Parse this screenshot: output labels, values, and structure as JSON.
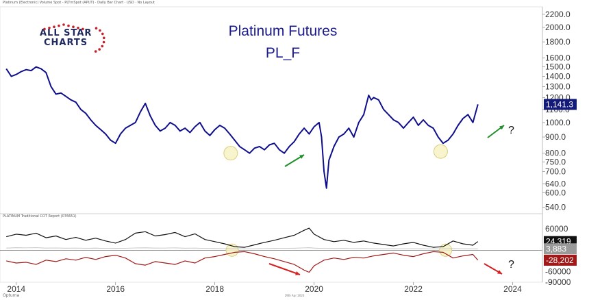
{
  "header": {
    "info": "Platinum (Electronic) Volume Spot - PLTmSpot (APUT) · Daily Bar Chart · USD · No Layout",
    "indicator": "PLATINUM Traditional COT Report (076651)",
    "date_stamp": "29th Apr 2023",
    "brand": "Optuma"
  },
  "title_line1": "Platinum Futures",
  "title_line2": "PL_F",
  "logo": {
    "line1": "ALL STAR",
    "line2": "CHARTS"
  },
  "annotations": {
    "question_mark": "?"
  },
  "colors": {
    "price": "#0e0e8c",
    "price_label_bg": "#131a78",
    "commercials": "#a01818",
    "speculators": "#111111",
    "other": "#bbbbbb",
    "arrow_up": "#1e8e2a",
    "arrow_down": "#d42020",
    "highlight_fill": "#f7f2c6",
    "highlight_stroke": "#d8cf7a",
    "axis_text": "#333333"
  },
  "chart_data": [
    {
      "type": "line",
      "name": "Platinum Futures price",
      "log_scale": true,
      "ylim": [
        520,
        2300
      ],
      "y_ticks": [
        "2200.0",
        "2000.0",
        "1800.0",
        "1600.0",
        "1500.0",
        "1400.0",
        "1300.0",
        "1200.0",
        "1100.0",
        "1000.0",
        "900.0",
        "800.0",
        "750.0",
        "700.0",
        "640.0",
        "600.0",
        "540.0"
      ],
      "xlim": [
        2013.7,
        2024.6
      ],
      "x_ticks": [
        "2014",
        "2016",
        "2018",
        "2020",
        "2022",
        "2024"
      ],
      "last_value_label": "1,141.3",
      "x": [
        2013.8,
        2013.9,
        2014.0,
        2014.1,
        2014.2,
        2014.3,
        2014.4,
        2014.5,
        2014.6,
        2014.7,
        2014.8,
        2014.9,
        2015.0,
        2015.1,
        2015.2,
        2015.3,
        2015.4,
        2015.5,
        2015.6,
        2015.7,
        2015.8,
        2015.9,
        2016.0,
        2016.1,
        2016.2,
        2016.3,
        2016.4,
        2016.5,
        2016.6,
        2016.7,
        2016.8,
        2016.9,
        2017.0,
        2017.1,
        2017.2,
        2017.3,
        2017.4,
        2017.5,
        2017.6,
        2017.7,
        2017.8,
        2017.9,
        2018.0,
        2018.1,
        2018.2,
        2018.3,
        2018.4,
        2018.5,
        2018.6,
        2018.7,
        2018.8,
        2018.9,
        2019.0,
        2019.1,
        2019.2,
        2019.3,
        2019.4,
        2019.5,
        2019.6,
        2019.7,
        2019.8,
        2019.9,
        2020.0,
        2020.1,
        2020.15,
        2020.2,
        2020.25,
        2020.3,
        2020.4,
        2020.5,
        2020.6,
        2020.7,
        2020.8,
        2020.9,
        2021.0,
        2021.1,
        2021.15,
        2021.2,
        2021.3,
        2021.4,
        2021.5,
        2021.6,
        2021.7,
        2021.8,
        2021.9,
        2022.0,
        2022.1,
        2022.2,
        2022.3,
        2022.4,
        2022.5,
        2022.6,
        2022.7,
        2022.8,
        2022.9,
        2023.0,
        2023.1,
        2023.2,
        2023.3
      ],
      "y": [
        1480,
        1400,
        1420,
        1450,
        1470,
        1460,
        1500,
        1480,
        1440,
        1300,
        1230,
        1240,
        1210,
        1180,
        1160,
        1100,
        1070,
        1020,
        980,
        950,
        920,
        880,
        860,
        920,
        960,
        980,
        1000,
        1080,
        1150,
        1050,
        980,
        940,
        960,
        1000,
        980,
        940,
        960,
        930,
        970,
        1000,
        940,
        910,
        950,
        980,
        960,
        920,
        880,
        840,
        820,
        800,
        830,
        840,
        820,
        850,
        860,
        820,
        800,
        840,
        870,
        920,
        960,
        920,
        970,
        1000,
        900,
        700,
        620,
        760,
        840,
        900,
        920,
        960,
        900,
        1000,
        1060,
        1220,
        1180,
        1200,
        1180,
        1100,
        1060,
        1020,
        1000,
        960,
        1000,
        1040,
        980,
        1020,
        980,
        960,
        900,
        860,
        880,
        920,
        980,
        1030,
        1060,
        1000,
        1141.3
      ]
    },
    {
      "type": "line",
      "name": "PLATINUM Traditional COT Report (076651)",
      "ylim": [
        -90000,
        95000
      ],
      "y_ticks": [
        "60000",
        "0",
        "-60000",
        "-90000"
      ],
      "x": [
        2013.8,
        2014.0,
        2014.2,
        2014.4,
        2014.6,
        2014.8,
        2015.0,
        2015.2,
        2015.4,
        2015.6,
        2015.8,
        2016.0,
        2016.2,
        2016.4,
        2016.6,
        2016.8,
        2017.0,
        2017.2,
        2017.4,
        2017.6,
        2017.8,
        2018.0,
        2018.2,
        2018.4,
        2018.6,
        2018.8,
        2019.0,
        2019.2,
        2019.4,
        2019.6,
        2019.8,
        2019.9,
        2020.0,
        2020.2,
        2020.4,
        2020.6,
        2020.8,
        2021.0,
        2021.2,
        2021.4,
        2021.6,
        2021.8,
        2022.0,
        2022.2,
        2022.4,
        2022.6,
        2022.8,
        2023.0,
        2023.2,
        2023.3
      ],
      "series": [
        {
          "name": "",
          "last_label": "24,319",
          "values": [
            38000,
            45000,
            42000,
            48000,
            35000,
            40000,
            30000,
            36000,
            28000,
            34000,
            26000,
            20000,
            30000,
            48000,
            52000,
            40000,
            44000,
            50000,
            38000,
            46000,
            30000,
            24000,
            18000,
            10000,
            8000,
            15000,
            22000,
            28000,
            35000,
            42000,
            56000,
            62000,
            45000,
            30000,
            24000,
            28000,
            22000,
            26000,
            20000,
            16000,
            12000,
            18000,
            22000,
            14000,
            8000,
            10000,
            26000,
            18000,
            14000,
            24319
          ]
        },
        {
          "name": "",
          "last_label": "-28,202",
          "values": [
            -30000,
            -36000,
            -34000,
            -40000,
            -28000,
            -32000,
            -24000,
            -28000,
            -20000,
            -26000,
            -18000,
            -14000,
            -22000,
            -38000,
            -42000,
            -32000,
            -36000,
            -40000,
            -30000,
            -36000,
            -22000,
            -18000,
            -12000,
            -6000,
            -4000,
            -10000,
            -18000,
            -24000,
            -32000,
            -40000,
            -56000,
            -62000,
            -44000,
            -28000,
            -22000,
            -26000,
            -20000,
            -22000,
            -16000,
            -12000,
            -8000,
            -14000,
            -18000,
            -10000,
            -4000,
            -6000,
            -22000,
            -16000,
            -12000,
            -28202
          ]
        },
        {
          "name": "",
          "last_label": "3,883",
          "values": [
            6000,
            7000,
            6500,
            7200,
            6000,
            6400,
            5800,
            6200,
            5600,
            6000,
            5200,
            5000,
            5600,
            6400,
            6800,
            6000,
            6200,
            6600,
            5800,
            6200,
            5200,
            4800,
            4400,
            4000,
            3800,
            4200,
            4600,
            5000,
            5400,
            5800,
            6600,
            7000,
            6000,
            5200,
            4800,
            5000,
            4600,
            4800,
            4400,
            4200,
            4000,
            4200,
            4400,
            4000,
            3600,
            3800,
            4600,
            4200,
            4000,
            3883
          ]
        }
      ]
    }
  ]
}
